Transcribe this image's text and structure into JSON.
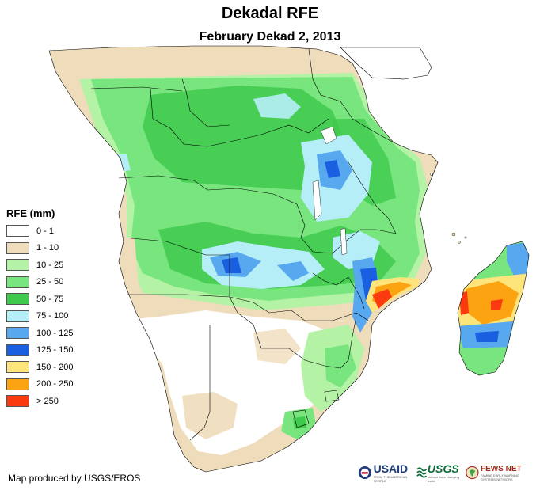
{
  "title": "Dekadal RFE",
  "subtitle": "February Dekad 2, 2013",
  "legend": {
    "title": "RFE (mm)",
    "items": [
      {
        "label": "0 - 1",
        "color": "#ffffff"
      },
      {
        "label": "1 - 10",
        "color": "#efdcbb"
      },
      {
        "label": "10 - 25",
        "color": "#b4f2a5"
      },
      {
        "label": "25 - 50",
        "color": "#79e57f"
      },
      {
        "label": "50 - 75",
        "color": "#3fca4e"
      },
      {
        "label": "75 - 100",
        "color": "#b6eef8"
      },
      {
        "label": "100 - 125",
        "color": "#57a8ee"
      },
      {
        "label": "125 - 150",
        "color": "#1a5fe0"
      },
      {
        "label": "150 - 200",
        "color": "#fde57c"
      },
      {
        "label": "200 - 250",
        "color": "#fca312"
      },
      {
        "label": "> 250",
        "color": "#fb3a0f"
      }
    ]
  },
  "credit": "Map produced by USGS/EROS",
  "logos": {
    "usaid": {
      "name": "USAID",
      "tagline": "FROM THE AMERICAN PEOPLE"
    },
    "usgs": {
      "name": "USGS",
      "tagline": "science for a changing world"
    },
    "fews": {
      "name": "FEWS NET",
      "tagline": "FAMINE EARLY WARNING SYSTEMS NETWORK"
    }
  },
  "map": {
    "region": "Southern Africa",
    "ocean_color": "#ffffff",
    "border_color": "#000000"
  }
}
